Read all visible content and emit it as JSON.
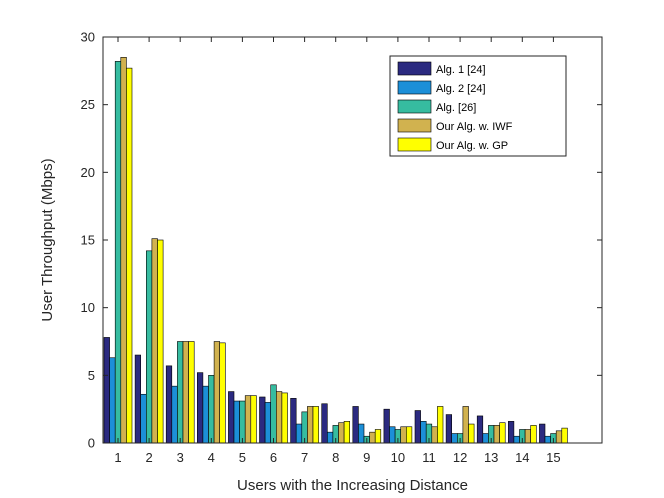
{
  "chart_data": {
    "type": "bar",
    "title": "",
    "xlabel": "Users with the Increasing Distance",
    "ylabel": "User Throughput (Mbps)",
    "ylim": [
      0,
      30
    ],
    "yticks": [
      0,
      5,
      10,
      15,
      20,
      25,
      30
    ],
    "categories": [
      "1",
      "2",
      "3",
      "4",
      "5",
      "6",
      "7",
      "8",
      "9",
      "10",
      "11",
      "12",
      "13",
      "14",
      "15"
    ],
    "legend_position": "top-right",
    "series": [
      {
        "name": "Alg. 1 [24]",
        "color": "#2b2a80",
        "values": [
          7.8,
          6.5,
          5.7,
          5.2,
          3.8,
          3.4,
          3.3,
          2.9,
          2.7,
          2.5,
          2.4,
          2.1,
          2.0,
          1.6,
          1.4
        ]
      },
      {
        "name": "Alg. 2 [24]",
        "color": "#1c8fd8",
        "values": [
          6.3,
          3.6,
          4.2,
          4.2,
          3.1,
          3.0,
          1.4,
          0.8,
          1.4,
          1.2,
          1.6,
          0.7,
          0.7,
          0.5,
          0.5
        ]
      },
      {
        "name": "Alg. [26]",
        "color": "#36bca0",
        "values": [
          28.2,
          14.2,
          7.5,
          5.0,
          3.1,
          4.3,
          2.3,
          1.3,
          0.5,
          1.0,
          1.4,
          0.7,
          1.3,
          1.0,
          0.7
        ]
      },
      {
        "name": "Our Alg. w. IWF",
        "color": "#d1b24f",
        "values": [
          28.5,
          15.1,
          7.5,
          7.5,
          3.5,
          3.8,
          2.7,
          1.5,
          0.8,
          1.2,
          1.2,
          2.7,
          1.3,
          1.0,
          0.9
        ]
      },
      {
        "name": "Our Alg. w. GP",
        "color": "#ffff00",
        "values": [
          27.7,
          15.0,
          7.5,
          7.4,
          3.5,
          3.7,
          2.7,
          1.6,
          1.0,
          1.2,
          2.7,
          1.4,
          1.5,
          1.3,
          1.1
        ]
      }
    ]
  }
}
